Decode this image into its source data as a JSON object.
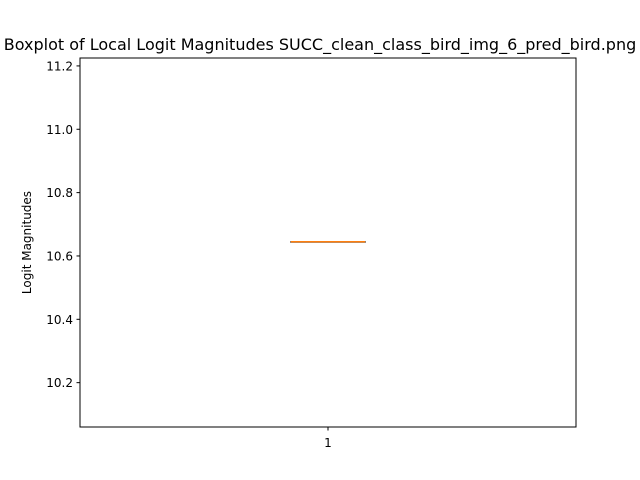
{
  "chart_data": {
    "type": "box",
    "title": "Boxplot of Local Logit Magnitudes SUCC_clean_class_bird_img_6_pred_bird.png",
    "xlabel": "",
    "ylabel": "Logit Magnitudes",
    "categories": [
      "1"
    ],
    "ylim": [
      10.06,
      11.225
    ],
    "yticks": [
      10.2,
      10.4,
      10.6,
      10.8,
      11.0,
      11.2
    ],
    "ytick_labels": [
      "10.2",
      "10.4",
      "10.6",
      "10.8",
      "11.0",
      "11.2"
    ],
    "series": [
      {
        "values": {
          "min": 10.645,
          "q1": 10.645,
          "median": 10.645,
          "q3": 10.645,
          "max": 10.645
        }
      }
    ],
    "grid": false,
    "legend": "none",
    "colors": {
      "box": "#000000",
      "median": "#ff7f0e",
      "axes": "#000000",
      "background": "#ffffff"
    }
  }
}
